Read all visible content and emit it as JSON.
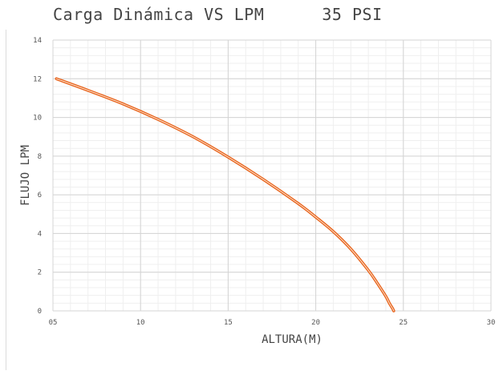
{
  "chart_title": {
    "main": "Carga Dinámica VS LPM",
    "pressure": "35 PSI"
  },
  "chart_data": {
    "type": "line",
    "title": "Carga Dinámica VS LPM 35 PSI",
    "xlabel": "ALTURA(M)",
    "ylabel": "FLUJO LPM",
    "xlim": [
      5,
      30
    ],
    "ylim": [
      0,
      14
    ],
    "x_ticks": [
      5,
      10,
      15,
      20,
      25,
      30
    ],
    "x_tick_labels": [
      "05",
      "10",
      "15",
      "20",
      "25",
      "30"
    ],
    "y_ticks": [
      0,
      2,
      4,
      6,
      8,
      10,
      12,
      14
    ],
    "y_tick_labels": [
      "0",
      "2",
      "4",
      "6",
      "8",
      "10",
      "12",
      "14"
    ],
    "grid": true,
    "legend": "none",
    "series": [
      {
        "color": "#e8621a",
        "x": [
          5.2,
          7,
          9,
          11,
          13,
          15,
          17,
          19,
          20,
          21,
          22,
          23,
          23.5,
          24,
          24.2,
          24.4,
          24.45
        ],
        "y": [
          12,
          11.4,
          10.7,
          9.9,
          9.0,
          7.95,
          6.8,
          5.55,
          4.85,
          4.1,
          3.2,
          2.1,
          1.45,
          0.75,
          0.4,
          0.1,
          0
        ]
      }
    ]
  }
}
